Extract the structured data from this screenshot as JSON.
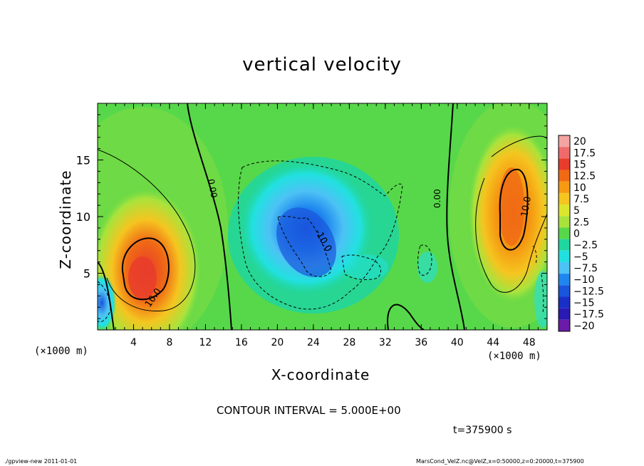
{
  "chart_data": {
    "type": "heatmap",
    "title": "vertical velocity",
    "xlabel": "X-coordinate",
    "ylabel": "Z-coordinate",
    "x_unit_label": "(×1000 m)",
    "x_ticks": [
      4,
      8,
      12,
      16,
      20,
      24,
      28,
      32,
      36,
      40,
      44,
      48
    ],
    "y_ticks": [
      5,
      10,
      15
    ],
    "xlim": [
      0,
      50
    ],
    "ylim": [
      0,
      20
    ],
    "colorbar": {
      "levels": [
        "20",
        "17.5",
        "15",
        "12.5",
        "10",
        "7.5",
        "5",
        "2.5",
        "0",
        "−2.5",
        "−5",
        "−7.5",
        "−10",
        "−12.5",
        "−15",
        "−17.5",
        "−20"
      ],
      "colors": [
        "#f4a3a3",
        "#ef6b6b",
        "#e83c2c",
        "#f06a15",
        "#f59a12",
        "#f5c520",
        "#dce62c",
        "#a8e33c",
        "#57d84a",
        "#1ed6a0",
        "#21e1e0",
        "#4dc2f5",
        "#1f86ee",
        "#1a55dd",
        "#1a2fc8",
        "#2a1ab4",
        "#6a1aa8"
      ]
    },
    "contour_labels": [
      "0.00",
      "0.00",
      "10.0",
      "-10.0",
      "10.0"
    ],
    "features": [
      {
        "name": "updraft-left",
        "x": 5,
        "z": 4.5,
        "peak": 15
      },
      {
        "name": "downdraft-center",
        "x": 23,
        "z": 7.5,
        "peak": -12.5
      },
      {
        "name": "updraft-right",
        "x": 46,
        "z": 10.5,
        "peak": 12.5
      },
      {
        "name": "downdraft-left-edge",
        "x": 0.5,
        "z": 2.5,
        "peak": -10
      }
    ]
  },
  "contour_interval_text": "CONTOUR INTERVAL = 5.000E+00",
  "time_text": "t=375900 s",
  "footer_left": "./gpview-new   2011-01-01",
  "footer_right": "MarsCond_VelZ.nc@VelZ,x=0:50000,z=0:20000,t=375900"
}
